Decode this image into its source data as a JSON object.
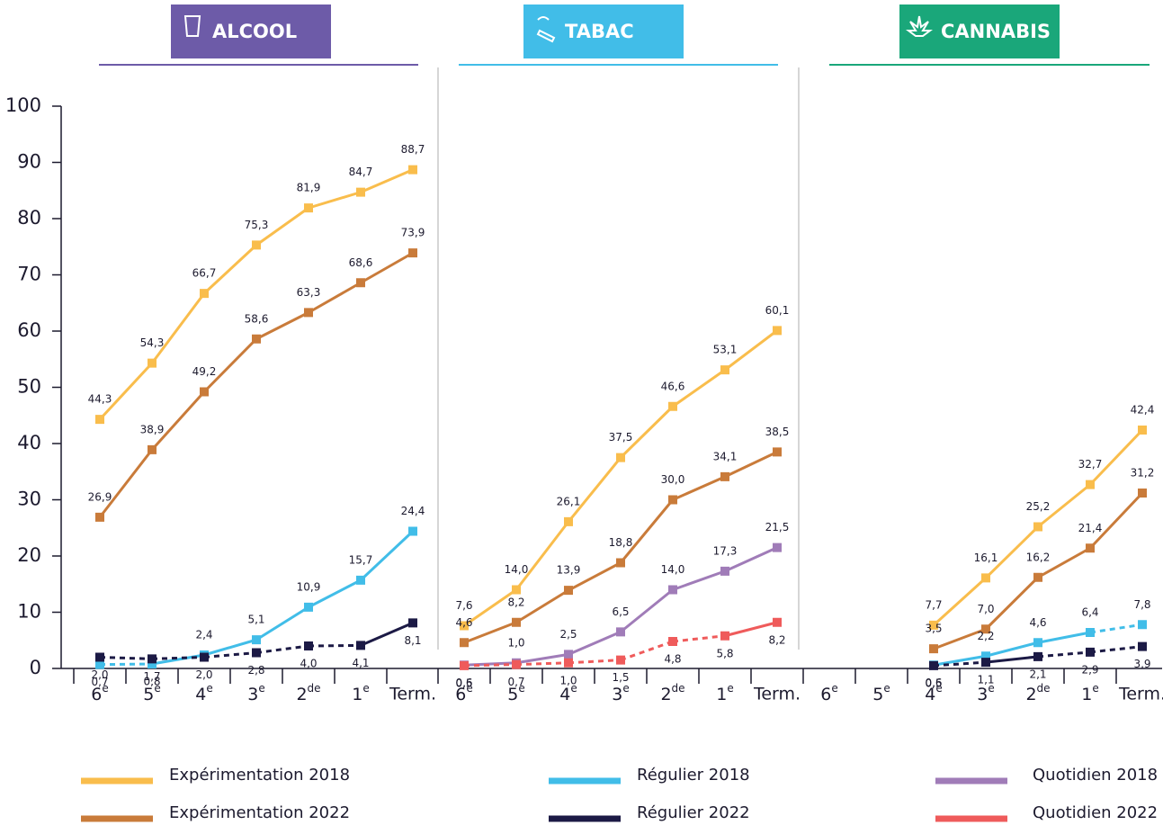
{
  "chart_data": [
    {
      "type": "line",
      "title": "ALCOOL",
      "color": "#6d5ba8",
      "categories": [
        "6e",
        "5e",
        "4e",
        "3e",
        "2de",
        "1e",
        "Term."
      ],
      "ylim": [
        0,
        100
      ],
      "yticks": [
        0,
        10,
        20,
        30,
        40,
        50,
        60,
        70,
        80,
        90,
        100
      ],
      "series": [
        {
          "name": "Expérimentation 2018",
          "color": "#f9bd4c",
          "values": [
            44.3,
            54.3,
            66.7,
            75.3,
            81.9,
            84.7,
            88.7
          ],
          "value_labels": [
            "44,3",
            "54,3",
            "66,7",
            "75,3",
            "81,9",
            "84,7",
            "88,7"
          ],
          "dashed": []
        },
        {
          "name": "Expérimentation 2022",
          "color": "#c97b3a",
          "values": [
            26.9,
            38.9,
            49.2,
            58.6,
            63.3,
            68.6,
            73.9
          ],
          "value_labels": [
            "26,9",
            "38,9",
            "49,2",
            "58,6",
            "63,3",
            "68,6",
            "73,9"
          ],
          "dashed": []
        },
        {
          "name": "Régulier 2018",
          "color": "#41bde8",
          "values": [
            0.7,
            0.8,
            2.4,
            5.1,
            10.9,
            15.7,
            24.4
          ],
          "value_labels": [
            "0,7",
            "0,8",
            "2,4",
            "5,1",
            "10,9",
            "15,7",
            "24,4"
          ],
          "dashed": [
            0
          ]
        },
        {
          "name": "Régulier 2022",
          "color": "#1c1a45",
          "values": [
            2.0,
            1.7,
            2.0,
            2.8,
            4.0,
            4.1,
            8.1
          ],
          "value_labels": [
            "2,0",
            "1,7",
            "2,0",
            "2,8",
            "4,0",
            "4,1",
            "8,1"
          ],
          "dashed": [
            0,
            1,
            2,
            3,
            4
          ]
        }
      ]
    },
    {
      "type": "line",
      "title": "TABAC",
      "color": "#41bde8",
      "categories": [
        "6e",
        "5e",
        "4e",
        "3e",
        "2de",
        "1e",
        "Term."
      ],
      "ylim": [
        0,
        100
      ],
      "series": [
        {
          "name": "Expérimentation 2018",
          "color": "#f9bd4c",
          "values": [
            7.6,
            14.0,
            26.1,
            37.5,
            46.6,
            53.1,
            60.1
          ],
          "value_labels": [
            "7,6",
            "14,0",
            "26,1",
            "37,5",
            "46,6",
            "53,1",
            "60,1"
          ],
          "dashed": []
        },
        {
          "name": "Expérimentation 2022",
          "color": "#c97b3a",
          "values": [
            4.6,
            8.2,
            13.9,
            18.8,
            30.0,
            34.1,
            38.5
          ],
          "value_labels": [
            "4,6",
            "8,2",
            "13,9",
            "18,8",
            "30,0",
            "34,1",
            "38,5"
          ],
          "dashed": []
        },
        {
          "name": "Quotidien 2018",
          "color": "#a07cb8",
          "values": [
            0.6,
            1.0,
            2.5,
            6.5,
            14.0,
            17.3,
            21.5
          ],
          "value_labels": [
            "0,6",
            "1,0",
            "2,5",
            "6,5",
            "14,0",
            "17,3",
            "21,5"
          ],
          "dashed": []
        },
        {
          "name": "Quotidien 2022",
          "color": "#ef5b5b",
          "values": [
            0.5,
            0.7,
            1.0,
            1.5,
            4.8,
            5.8,
            8.2
          ],
          "value_labels": [
            "0,5",
            "0,7",
            "1,0",
            "1,5",
            "4,8",
            "5,8",
            "8,2"
          ],
          "dashed": [
            0,
            1,
            2,
            3,
            4
          ]
        }
      ]
    },
    {
      "type": "line",
      "title": "CANNABIS",
      "color": "#1aa77a",
      "categories": [
        "6e",
        "5e",
        "4e",
        "3e",
        "2de",
        "1e",
        "Term."
      ],
      "ylim": [
        0,
        100
      ],
      "series": [
        {
          "name": "Expérimentation 2018",
          "color": "#f9bd4c",
          "values": [
            null,
            null,
            7.7,
            16.1,
            25.2,
            32.7,
            42.4
          ],
          "value_labels": [
            null,
            null,
            "7,7",
            "16,1",
            "25,2",
            "32,7",
            "42,4"
          ],
          "dashed": []
        },
        {
          "name": "Expérimentation 2022",
          "color": "#c97b3a",
          "values": [
            null,
            null,
            3.5,
            7.0,
            16.2,
            21.4,
            31.2
          ],
          "value_labels": [
            null,
            null,
            "3,5",
            "7,0",
            "16,2",
            "21,4",
            "31,2"
          ],
          "dashed": []
        },
        {
          "name": "Régulier 2018",
          "color": "#41bde8",
          "values": [
            null,
            null,
            0.6,
            2.2,
            4.6,
            6.4,
            7.8
          ],
          "value_labels": [
            null,
            null,
            "0,6",
            "2,2",
            "4,6",
            "6,4",
            "7,8"
          ],
          "dashed": [
            5
          ]
        },
        {
          "name": "Régulier 2022",
          "color": "#1c1a45",
          "values": [
            null,
            null,
            0.5,
            1.1,
            2.1,
            2.9,
            3.9
          ],
          "value_labels": [
            null,
            null,
            "0,5",
            "1,1",
            "2,1",
            "2,9",
            "3,9"
          ],
          "dashed": [
            2,
            4,
            5
          ]
        }
      ]
    }
  ]
}
